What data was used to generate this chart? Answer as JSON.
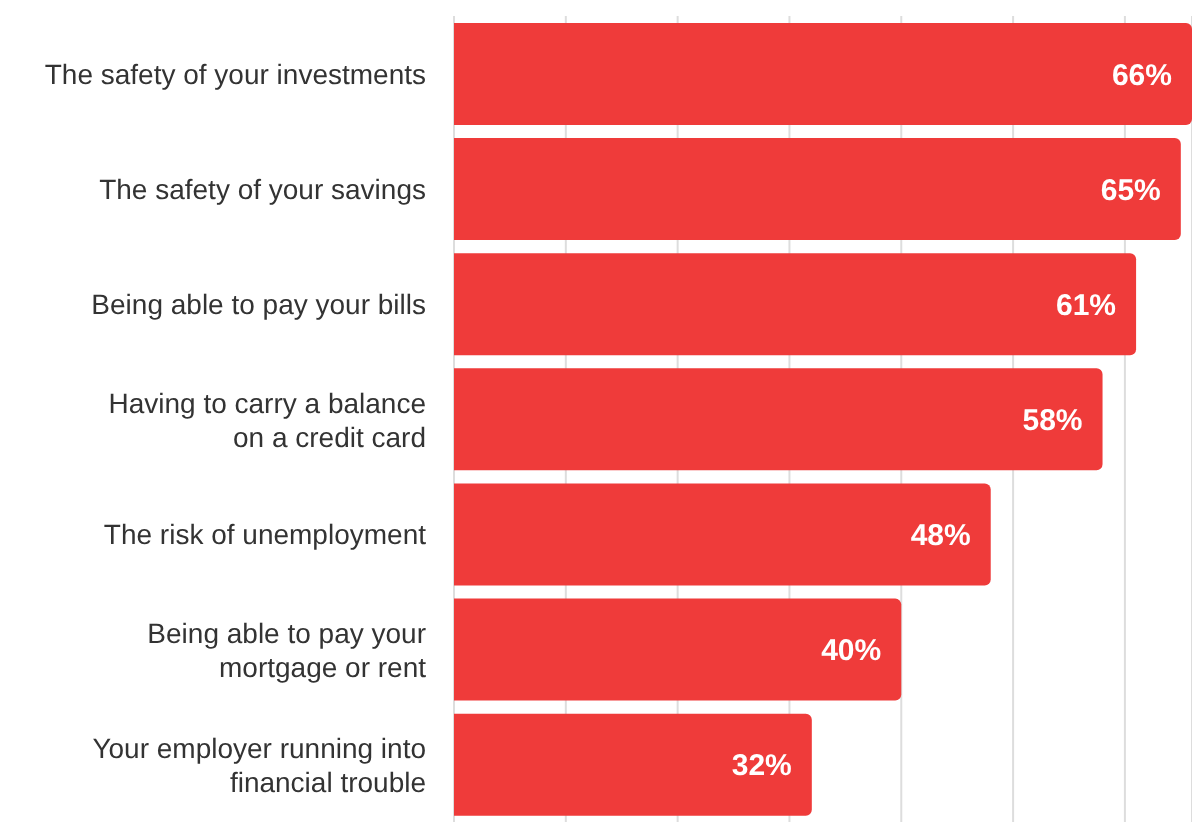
{
  "chart_data": {
    "type": "bar",
    "orientation": "horizontal",
    "categories": [
      "The safety of your investments",
      "The safety of your savings",
      "Being able to pay your bills",
      "Having to carry a balance on a credit card",
      "The risk of unemployment",
      "Being able to pay your mortgage or rent",
      "Your employer running into financial trouble"
    ],
    "values": [
      66,
      65,
      61,
      58,
      48,
      40,
      32
    ],
    "color": "#ef3b3a",
    "value_labels": [
      "66%",
      "65%",
      "61%",
      "58%",
      "48%",
      "40%",
      "32%"
    ],
    "grid": "x",
    "tick_labels": "y"
  }
}
